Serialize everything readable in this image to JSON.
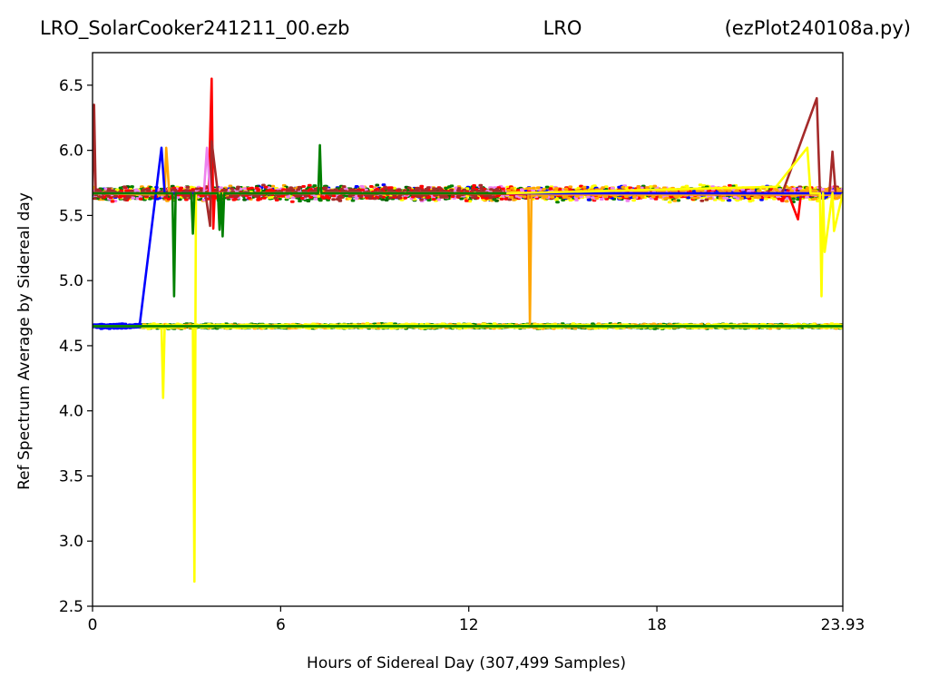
{
  "title": {
    "left": "LRO_SolarCooker241211_00.ezb",
    "center": "LRO",
    "right": "(ezPlot240108a.py)"
  },
  "chart_data": {
    "type": "line",
    "xlabel": "Hours of Sidereal Day  (307,499 Samples)",
    "ylabel": "Ref Spectrum Average by Sidereal day",
    "xlim": [
      0,
      23.93
    ],
    "ylim": [
      2.5,
      6.75
    ],
    "x_ticks": [
      0,
      6,
      12,
      18,
      23.93
    ],
    "x_tick_labels": [
      "0",
      "6",
      "12",
      "18",
      "23.93"
    ],
    "y_ticks": [
      2.5,
      3.0,
      3.5,
      4.0,
      4.5,
      5.0,
      5.5,
      6.0,
      6.5
    ],
    "y_tick_labels": [
      "2.5",
      "3.0",
      "3.5",
      "4.0",
      "4.5",
      "5.0",
      "5.5",
      "6.0",
      "6.5"
    ],
    "grid": false,
    "legend": "none",
    "series": [
      {
        "color": "#ff0000",
        "x": [
          0,
          3.7,
          3.8,
          3.85,
          3.9,
          4.0,
          22.2,
          22.5,
          22.6,
          23.93
        ],
        "y": [
          5.67,
          5.66,
          6.55,
          5.4,
          5.68,
          5.67,
          5.66,
          5.47,
          5.67,
          5.67
        ]
      },
      {
        "color": "#a52a2a",
        "x": [
          0,
          0.05,
          0.1,
          3.6,
          3.75,
          3.8,
          4.0,
          22.0,
          23.1,
          23.2,
          23.5,
          23.6,
          23.7,
          23.93
        ],
        "y": [
          5.67,
          6.35,
          5.67,
          5.67,
          5.42,
          6.07,
          5.67,
          5.67,
          6.4,
          5.67,
          5.66,
          5.99,
          5.67,
          5.67
        ]
      },
      {
        "color": "#ffa500",
        "x": [
          0,
          2.3,
          2.35,
          2.45,
          2.55,
          13.9,
          13.95,
          14.0,
          23.93
        ],
        "y": [
          5.67,
          5.66,
          6.02,
          5.66,
          5.67,
          5.67,
          4.67,
          5.66,
          5.66
        ]
      },
      {
        "color": "#ee82ee",
        "x": [
          0,
          3.55,
          3.65,
          3.75,
          23.93
        ],
        "y": [
          5.67,
          5.67,
          6.02,
          5.67,
          5.67
        ]
      },
      {
        "color": "#0000ff",
        "x": [
          0,
          1.5,
          2.2,
          2.3,
          23.93
        ],
        "y": [
          4.65,
          4.65,
          6.02,
          5.67,
          5.67
        ]
      },
      {
        "color": "#ffff00",
        "x": [
          0,
          2.2,
          2.25,
          2.3,
          3.2,
          3.25,
          3.3,
          13.2,
          21.8,
          22.8,
          22.9,
          23.2,
          23.25,
          23.3,
          23.35,
          23.6,
          23.65,
          23.93
        ],
        "y": [
          4.65,
          4.65,
          4.1,
          4.65,
          4.65,
          2.69,
          5.67,
          5.67,
          5.72,
          6.02,
          5.67,
          5.67,
          4.88,
          5.67,
          5.22,
          5.67,
          5.38,
          5.67
        ]
      },
      {
        "color": "#008000",
        "x": [
          0,
          2.55,
          2.6,
          2.65,
          3.15,
          3.2,
          3.25,
          4.0,
          4.05,
          4.1,
          4.15,
          4.2,
          4.25,
          7.2,
          7.25,
          7.3,
          13.2
        ],
        "y": [
          5.67,
          5.67,
          4.88,
          5.67,
          5.67,
          5.36,
          5.67,
          5.67,
          5.39,
          5.67,
          5.34,
          5.67,
          5.67,
          5.67,
          6.04,
          5.67,
          5.67
        ]
      },
      {
        "color": "#008000",
        "x": [
          0,
          23.93
        ],
        "y": [
          4.65,
          4.65
        ]
      }
    ],
    "noise_bands": [
      {
        "x": [
          0,
          13.2
        ],
        "y_center": 5.67,
        "y_spread": 0.07,
        "colors": [
          "#008000",
          "#008000",
          "#006400",
          "#ffff00",
          "#ff0000",
          "#0000ff",
          "#ffa500",
          "#ee82ee",
          "#a52a2a"
        ]
      },
      {
        "x": [
          13.2,
          23.93
        ],
        "y_center": 5.67,
        "y_spread": 0.07,
        "colors": [
          "#ffff00",
          "#ffff00",
          "#ffff00",
          "#ffff00",
          "#ffa500",
          "#ff0000",
          "#0000ff",
          "#008000",
          "#ee82ee",
          "#a52a2a"
        ]
      },
      {
        "x": [
          1.5,
          23.93
        ],
        "y_center": 4.65,
        "y_spread": 0.022,
        "colors": [
          "#008000",
          "#008000",
          "#008000",
          "#ffff00",
          "#ffa500"
        ]
      },
      {
        "x": [
          0,
          1.5
        ],
        "y_center": 4.65,
        "y_spread": 0.022,
        "colors": [
          "#0000ff"
        ]
      }
    ]
  }
}
